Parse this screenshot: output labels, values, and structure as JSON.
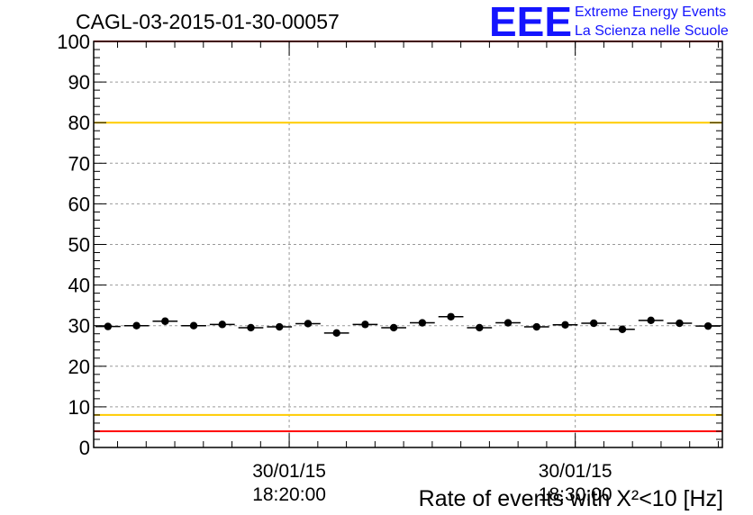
{
  "chart_data": {
    "type": "scatter",
    "title": "CAGL-03-2015-01-30-00057",
    "xlabel": "Rate of events with X²<10 [Hz]",
    "ylabel": "",
    "ylim": [
      0,
      100
    ],
    "yticks": [
      "0",
      "10",
      "20",
      "30",
      "40",
      "50",
      "60",
      "70",
      "80",
      "90",
      "100"
    ],
    "xticks": [
      {
        "date": "30/01/15",
        "time": "18:20:00"
      },
      {
        "date": "30/01/15",
        "time": "18:30:00"
      }
    ],
    "grid": true,
    "series": [
      {
        "values": [
          29.8,
          30.0,
          31.1,
          30.0,
          30.3,
          29.5,
          29.7,
          30.5,
          28.2,
          30.3,
          29.5,
          30.7,
          32.2,
          29.5,
          30.7,
          29.7,
          30.2,
          30.6,
          29.1,
          31.3,
          30.6,
          29.9
        ]
      }
    ],
    "reference_lines": [
      {
        "y": 100,
        "color": "#ff0000"
      },
      {
        "y": 80,
        "color": "#ffcc00"
      },
      {
        "y": 8,
        "color": "#ffcc00"
      },
      {
        "y": 4,
        "color": "#ff0000"
      }
    ]
  },
  "logo": {
    "letters": "EEE",
    "line1": "Extreme Energy Events",
    "line2": "La Scienza nelle Scuole",
    "color": "#1414ff"
  }
}
